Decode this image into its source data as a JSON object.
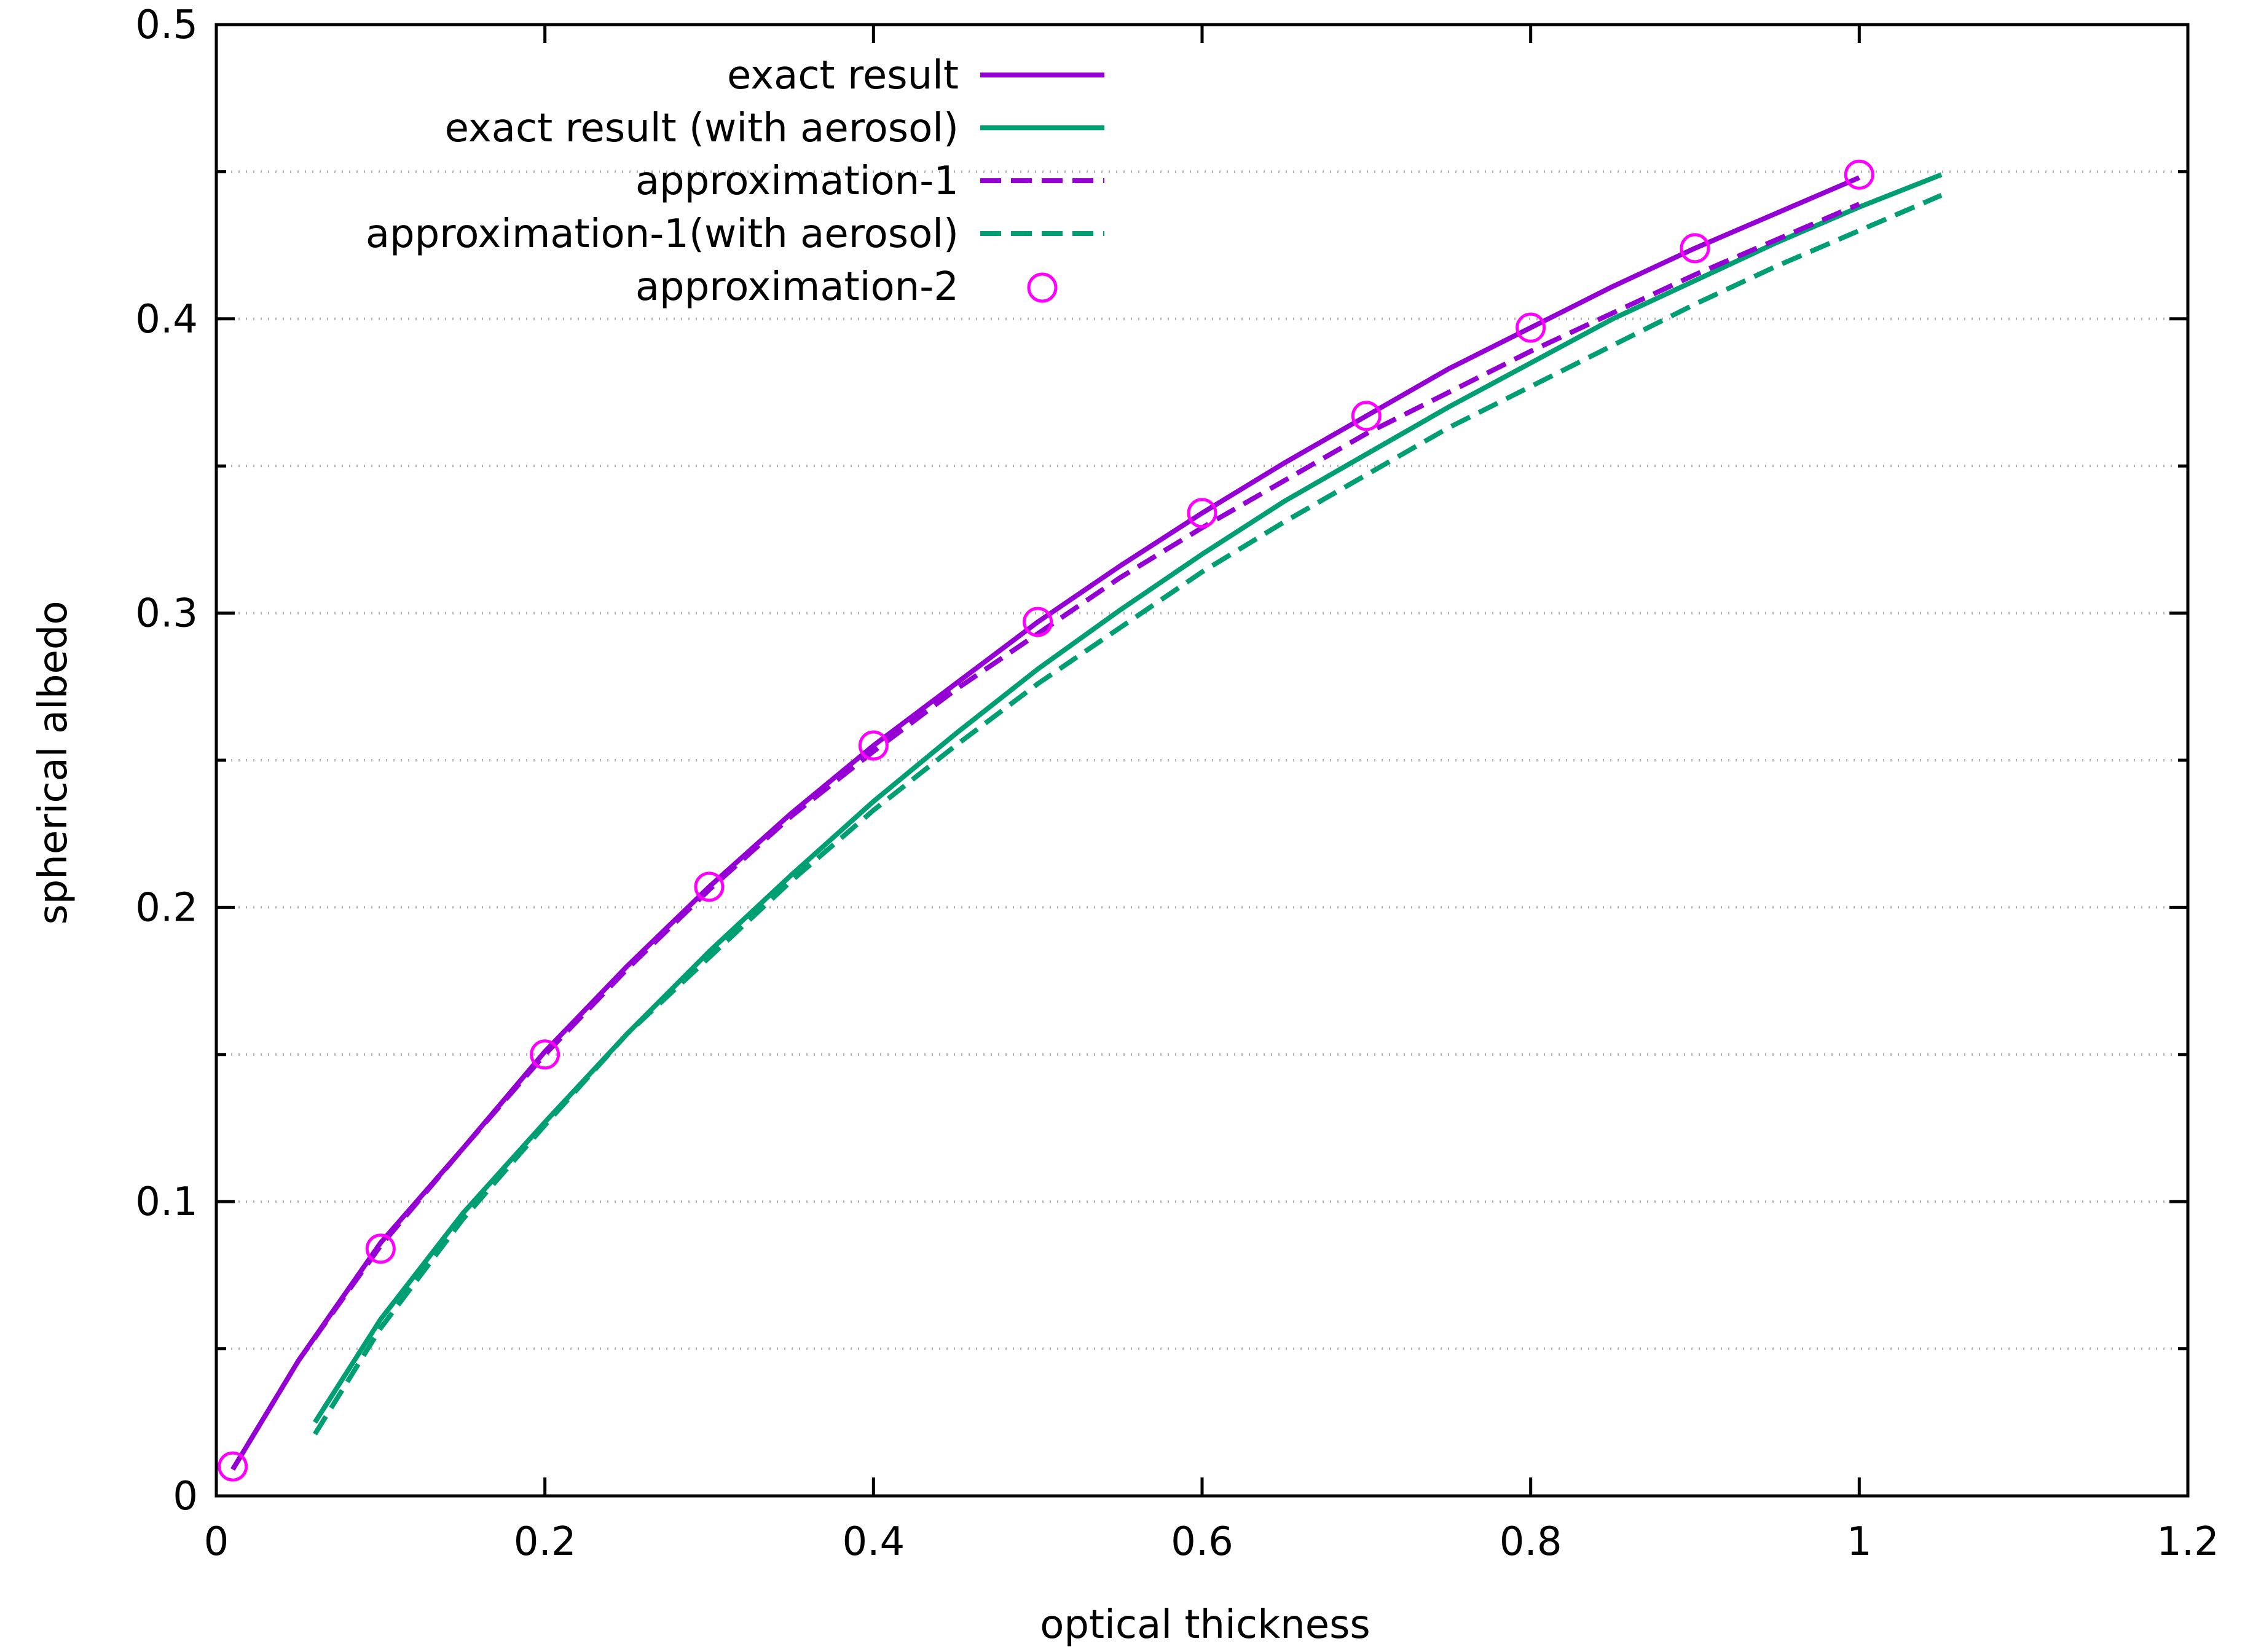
{
  "chart_data": {
    "type": "line",
    "title": "",
    "xlabel": "optical thickness",
    "ylabel": "spherical albedo",
    "xlim": [
      0,
      1.2
    ],
    "ylim": [
      0,
      0.5
    ],
    "x_tick_labels": [
      "0",
      "0.2",
      "0.4",
      "0.6",
      "0.8",
      "1",
      "1.2"
    ],
    "y_tick_labels": [
      "0",
      "0.1",
      "0.2",
      "0.3",
      "0.4",
      "0.5"
    ],
    "grid": "horizontal dotted at every 0.05",
    "legend_position": "top-left",
    "series": [
      {
        "name": "exact result",
        "color": "#9400d3",
        "style": "solid",
        "x": [
          0.01,
          0.05,
          0.1,
          0.15,
          0.2,
          0.25,
          0.3,
          0.35,
          0.4,
          0.45,
          0.5,
          0.55,
          0.6,
          0.65,
          0.7,
          0.75,
          0.8,
          0.85,
          0.9,
          0.95,
          1.0
        ],
        "y": [
          0.009,
          0.046,
          0.086,
          0.118,
          0.151,
          0.18,
          0.207,
          0.232,
          0.255,
          0.276,
          0.297,
          0.316,
          0.334,
          0.351,
          0.367,
          0.383,
          0.397,
          0.411,
          0.424,
          0.436,
          0.448
        ]
      },
      {
        "name": "exact result (with aerosol)",
        "color": "#009e73",
        "style": "solid",
        "x": [
          0.06,
          0.1,
          0.15,
          0.2,
          0.25,
          0.3,
          0.35,
          0.4,
          0.45,
          0.5,
          0.55,
          0.6,
          0.65,
          0.7,
          0.75,
          0.8,
          0.85,
          0.9,
          0.95,
          1.0,
          1.05
        ],
        "y": [
          0.025,
          0.06,
          0.096,
          0.127,
          0.157,
          0.185,
          0.211,
          0.236,
          0.259,
          0.281,
          0.301,
          0.32,
          0.338,
          0.354,
          0.37,
          0.385,
          0.4,
          0.413,
          0.426,
          0.438,
          0.449
        ]
      },
      {
        "name": "approximation-1",
        "color": "#9400d3",
        "style": "dashed",
        "x": [
          0.01,
          0.05,
          0.1,
          0.15,
          0.2,
          0.25,
          0.3,
          0.35,
          0.4,
          0.45,
          0.5,
          0.55,
          0.6,
          0.65,
          0.7,
          0.75,
          0.8,
          0.85,
          0.9,
          0.95,
          1.0
        ],
        "y": [
          0.009,
          0.046,
          0.085,
          0.118,
          0.15,
          0.179,
          0.206,
          0.231,
          0.253,
          0.274,
          0.293,
          0.312,
          0.329,
          0.345,
          0.361,
          0.375,
          0.389,
          0.402,
          0.415,
          0.427,
          0.439
        ]
      },
      {
        "name": "approximation-1(with aerosol)",
        "color": "#009e73",
        "style": "dashed",
        "x": [
          0.06,
          0.1,
          0.15,
          0.2,
          0.25,
          0.3,
          0.35,
          0.4,
          0.45,
          0.5,
          0.55,
          0.6,
          0.65,
          0.7,
          0.75,
          0.8,
          0.85,
          0.9,
          0.95,
          1.0,
          1.05
        ],
        "y": [
          0.021,
          0.057,
          0.094,
          0.126,
          0.157,
          0.183,
          0.209,
          0.233,
          0.255,
          0.276,
          0.295,
          0.314,
          0.331,
          0.347,
          0.363,
          0.377,
          0.391,
          0.405,
          0.418,
          0.43,
          0.442
        ]
      },
      {
        "name": "approximation-2",
        "color": "#ff00ff",
        "style": "markers",
        "marker": "open-circle",
        "x": [
          0.01,
          0.1,
          0.2,
          0.3,
          0.4,
          0.5,
          0.6,
          0.7,
          0.8,
          0.9,
          1.0
        ],
        "y": [
          0.01,
          0.084,
          0.15,
          0.207,
          0.255,
          0.297,
          0.334,
          0.367,
          0.397,
          0.424,
          0.449
        ]
      }
    ]
  }
}
